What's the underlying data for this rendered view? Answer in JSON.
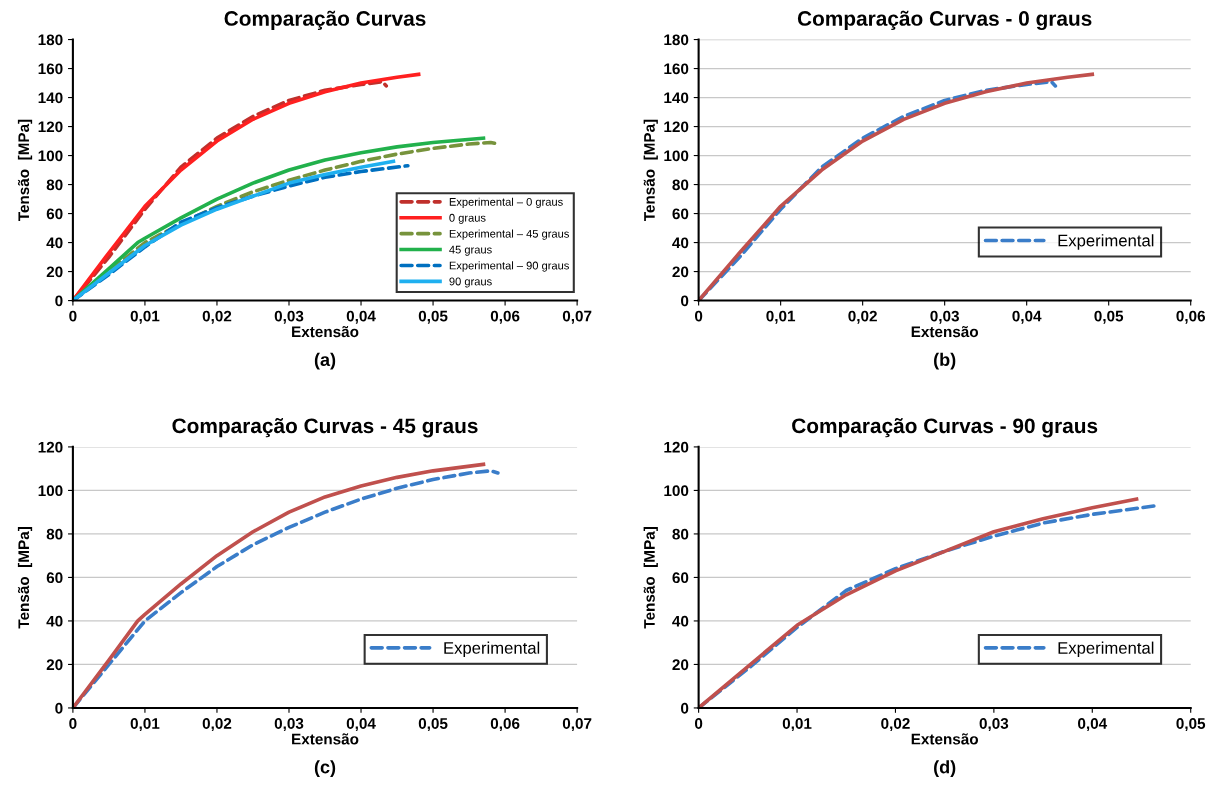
{
  "chart_data": [
    {
      "type": "line",
      "title": "Comparação Curvas",
      "xlabel": "Extensão",
      "ylabel": "Tensão  [MPa]",
      "annotations": [
        "(a)"
      ],
      "xlim": [
        0,
        0.07
      ],
      "xticks": [
        0,
        {
          "value": 0.01,
          "label": "0,01"
        },
        {
          "value": 0.02,
          "label": "0,02"
        },
        {
          "value": 0.03,
          "label": "0,03"
        },
        {
          "value": 0.04,
          "label": "0,04"
        },
        {
          "value": 0.05,
          "label": "0,05"
        },
        {
          "value": 0.06,
          "label": "0,06"
        },
        {
          "value": 0.07,
          "label": "0,07"
        }
      ],
      "ylim": [
        0,
        180
      ],
      "yticks": [
        0,
        20,
        40,
        60,
        80,
        100,
        120,
        140,
        160,
        180
      ],
      "grid": false,
      "legend": "bottom right",
      "marker": "none",
      "series": [
        {
          "name": "Experimental – 0 graus",
          "color": "#c0302c",
          "line_style": "dashed",
          "x": [
            0,
            0.005,
            0.01,
            0.015,
            0.02,
            0.025,
            0.03,
            0.035,
            0.04,
            0.043,
            0.0435
          ],
          "values": [
            0,
            30,
            63,
            92,
            112,
            127,
            138,
            145,
            149,
            151,
            148
          ]
        },
        {
          "name": "0 graus",
          "color": "#ff2020",
          "line_style": "solid",
          "x": [
            0,
            0.005,
            0.01,
            0.015,
            0.02,
            0.025,
            0.03,
            0.035,
            0.04,
            0.045,
            0.048
          ],
          "values": [
            0,
            33,
            65,
            90,
            110,
            125,
            136,
            144,
            150,
            154,
            156
          ]
        },
        {
          "name": "Experimental – 45 graus",
          "color": "#77933c",
          "line_style": "dashed",
          "x": [
            0,
            0.005,
            0.01,
            0.015,
            0.02,
            0.025,
            0.03,
            0.035,
            0.04,
            0.045,
            0.05,
            0.055,
            0.058,
            0.059
          ],
          "values": [
            0,
            20,
            40,
            53,
            65,
            75,
            83,
            90,
            96,
            101,
            105,
            108,
            109,
            108
          ]
        },
        {
          "name": "45 graus",
          "color": "#22b14c",
          "line_style": "solid",
          "x": [
            0,
            0.005,
            0.009,
            0.01,
            0.015,
            0.02,
            0.025,
            0.03,
            0.035,
            0.04,
            0.045,
            0.05,
            0.057
          ],
          "values": [
            0,
            22,
            40,
            43,
            57,
            70,
            81,
            90,
            97,
            102,
            106,
            109,
            112
          ]
        },
        {
          "name": "Experimental – 90 graus",
          "color": "#0070c0",
          "line_style": "dashed",
          "x": [
            0,
            0.005,
            0.01,
            0.015,
            0.02,
            0.025,
            0.03,
            0.035,
            0.04,
            0.0465
          ],
          "values": [
            0,
            18,
            37,
            54,
            64,
            72,
            79,
            85,
            89,
            93
          ]
        },
        {
          "name": "90 graus",
          "color": "#1fb0f0",
          "line_style": "solid",
          "x": [
            0,
            0.005,
            0.01,
            0.015,
            0.02,
            0.025,
            0.03,
            0.035,
            0.04,
            0.0445
          ],
          "values": [
            0,
            19,
            38,
            52,
            63,
            72,
            81,
            87,
            92,
            96
          ]
        }
      ]
    },
    {
      "type": "line",
      "title": "Comparação Curvas - 0 graus",
      "xlabel": "Extensão",
      "ylabel": "Tensão  [MPa]",
      "annotations": [
        "(b)"
      ],
      "xlim": [
        0,
        0.06
      ],
      "xticks": [
        0,
        {
          "value": 0.01,
          "label": "0,01"
        },
        {
          "value": 0.02,
          "label": "0,02"
        },
        {
          "value": 0.03,
          "label": "0,03"
        },
        {
          "value": 0.04,
          "label": "0,04"
        },
        {
          "value": 0.05,
          "label": "0,05"
        },
        {
          "value": 0.06,
          "label": "0,06"
        }
      ],
      "ylim": [
        0,
        180
      ],
      "yticks": [
        0,
        20,
        40,
        60,
        80,
        100,
        120,
        140,
        160,
        180
      ],
      "grid": "y",
      "legend": "bottom right",
      "marker": "none",
      "series": [
        {
          "name": "Experimental",
          "color": "#3a7dc9",
          "line_style": "dashed",
          "x": [
            0,
            0.005,
            0.01,
            0.015,
            0.02,
            0.025,
            0.03,
            0.035,
            0.04,
            0.043,
            0.0435
          ],
          "values": [
            0,
            30,
            63,
            92,
            112,
            127,
            138,
            145,
            149,
            151,
            148
          ]
        },
        {
          "color": "#c0504d",
          "line_style": "solid",
          "x": [
            0,
            0.005,
            0.01,
            0.015,
            0.02,
            0.025,
            0.03,
            0.035,
            0.04,
            0.045,
            0.048
          ],
          "values": [
            0,
            33,
            65,
            90,
            110,
            125,
            136,
            144,
            150,
            154,
            156
          ]
        }
      ]
    },
    {
      "type": "line",
      "title": "Comparação Curvas - 45 graus",
      "xlabel": "Extensão",
      "ylabel": "Tensão  [MPa]",
      "annotations": [
        "(c)"
      ],
      "xlim": [
        0,
        0.07
      ],
      "xticks": [
        0,
        {
          "value": 0.01,
          "label": "0,01"
        },
        {
          "value": 0.02,
          "label": "0,02"
        },
        {
          "value": 0.03,
          "label": "0,03"
        },
        {
          "value": 0.04,
          "label": "0,04"
        },
        {
          "value": 0.05,
          "label": "0,05"
        },
        {
          "value": 0.06,
          "label": "0,06"
        },
        {
          "value": 0.07,
          "label": "0,07"
        }
      ],
      "ylim": [
        0,
        120
      ],
      "yticks": [
        0,
        20,
        40,
        60,
        80,
        100,
        120
      ],
      "grid": "y",
      "legend": "bottom right",
      "marker": "none",
      "series": [
        {
          "name": "Experimental",
          "color": "#3a7dc9",
          "line_style": "dashed",
          "x": [
            0,
            0.005,
            0.01,
            0.015,
            0.02,
            0.025,
            0.03,
            0.035,
            0.04,
            0.045,
            0.05,
            0.055,
            0.058,
            0.059
          ],
          "values": [
            0,
            20,
            40,
            53,
            65,
            75,
            83,
            90,
            96,
            101,
            105,
            108,
            109,
            108
          ]
        },
        {
          "color": "#c0504d",
          "line_style": "solid",
          "x": [
            0,
            0.005,
            0.009,
            0.01,
            0.015,
            0.02,
            0.025,
            0.03,
            0.035,
            0.04,
            0.045,
            0.05,
            0.057
          ],
          "values": [
            0,
            22,
            40,
            43,
            57,
            70,
            81,
            90,
            97,
            102,
            106,
            109,
            112
          ]
        }
      ]
    },
    {
      "type": "line",
      "title": "Comparação Curvas - 90 graus",
      "xlabel": "Extensão",
      "ylabel": "Tensão  [MPa]",
      "annotations": [
        "(d)"
      ],
      "xlim": [
        0,
        0.05
      ],
      "xticks": [
        0,
        {
          "value": 0.01,
          "label": "0,01"
        },
        {
          "value": 0.02,
          "label": "0,02"
        },
        {
          "value": 0.03,
          "label": "0,03"
        },
        {
          "value": 0.04,
          "label": "0,04"
        },
        {
          "value": 0.05,
          "label": "0,05"
        }
      ],
      "ylim": [
        0,
        120
      ],
      "yticks": [
        0,
        20,
        40,
        60,
        80,
        100,
        120
      ],
      "grid": "y",
      "legend": "bottom right",
      "marker": "none",
      "series": [
        {
          "name": "Experimental",
          "color": "#3a7dc9",
          "line_style": "dashed",
          "x": [
            0,
            0.005,
            0.01,
            0.015,
            0.02,
            0.025,
            0.03,
            0.035,
            0.04,
            0.0465
          ],
          "values": [
            0,
            18,
            37,
            54,
            64,
            72,
            79,
            85,
            89,
            93
          ]
        },
        {
          "color": "#c0504d",
          "line_style": "solid",
          "x": [
            0,
            0.005,
            0.01,
            0.015,
            0.02,
            0.025,
            0.03,
            0.035,
            0.04,
            0.0445
          ],
          "values": [
            0,
            19,
            38,
            52,
            63,
            72,
            81,
            87,
            92,
            96
          ]
        }
      ]
    }
  ]
}
